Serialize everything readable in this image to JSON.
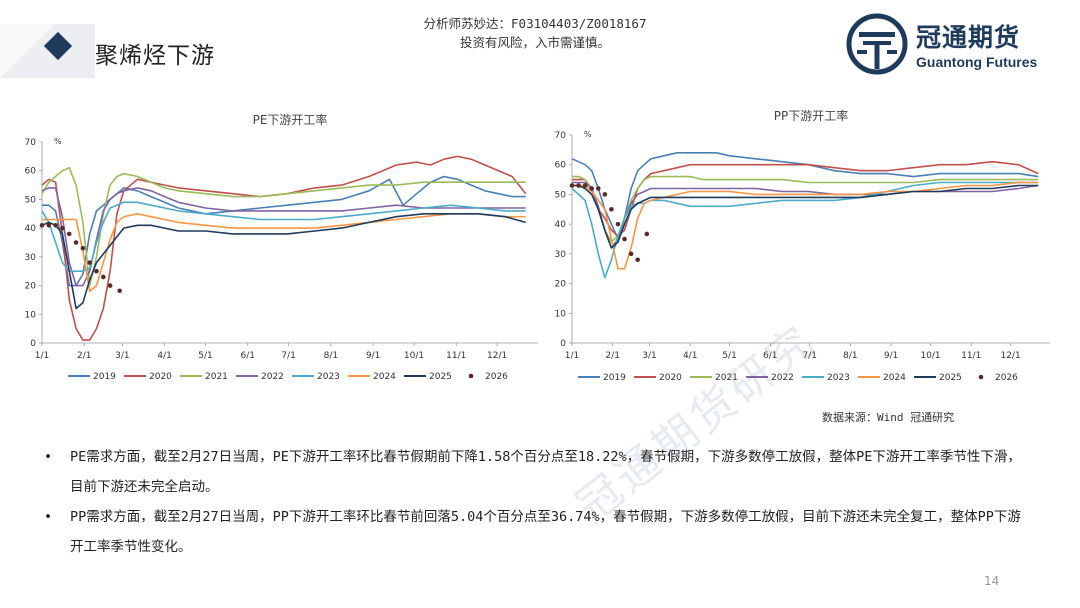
{
  "header": {
    "title": "聚烯烃下游",
    "analyst_line1": "分析师苏妙达：F03104403/Z0018167",
    "analyst_line2": "投资有风险，入市需谨慎。"
  },
  "logo": {
    "name_cn": "冠通期货",
    "name_en": "Guantong Futures",
    "brand_color": "#1f3b5c"
  },
  "source": "数据来源：Wind 冠通研究",
  "bullets": [
    "PE需求方面，截至2月27日当周，PE下游开工率环比春节假期前下降1.58个百分点至18.22%，春节假期，下游多数停工放假，整体PE下游开工率季节性下滑，目前下游还未完全启动。",
    "PP需求方面，截至2月27日当周，PP下游开工率环比春节前回落5.04个百分点至36.74%，春节假期，下游多数停工放假，目前下游还未完全复工，整体PP下游开工率季节性变化。"
  ],
  "bullet_symbol": "•",
  "watermark": "冠通期货研究",
  "page_number": "14",
  "chart_data": [
    {
      "type": "line",
      "title": "PE下游开工率",
      "ylabel": "%",
      "xlabel": "",
      "ylim": [
        0,
        70
      ],
      "yticks": [
        "0",
        "10",
        "20",
        "30",
        "40",
        "50",
        "60",
        "70"
      ],
      "xticks": [
        "1/1",
        "2/1",
        "3/1",
        "4/1",
        "5/1",
        "6/1",
        "7/1",
        "8/1",
        "9/1",
        "10/1",
        "11/1",
        "12/1"
      ],
      "legend_position": "bottom",
      "grid": false,
      "series": [
        {
          "name": "2019",
          "color": "#4a7fb5",
          "x": [
            1,
            6,
            11,
            16,
            21,
            26,
            31,
            36,
            41,
            46,
            51,
            56,
            61,
            71,
            81,
            91,
            101,
            121,
            141,
            161,
            181,
            201,
            221,
            241,
            256,
            266,
            276,
            286,
            296,
            306,
            316,
            326,
            336,
            346,
            356
          ],
          "values": [
            48,
            48,
            46,
            35,
            20,
            20,
            24,
            38,
            46,
            48,
            50,
            52,
            54,
            53,
            51,
            49,
            47,
            45,
            46,
            47,
            48,
            49,
            50,
            53,
            57,
            48,
            52,
            56,
            58,
            57,
            55,
            53,
            52,
            51,
            51
          ]
        },
        {
          "name": "2020",
          "color": "#c0504d",
          "x": [
            1,
            6,
            11,
            16,
            21,
            26,
            31,
            36,
            41,
            46,
            51,
            56,
            61,
            66,
            71,
            81,
            91,
            101,
            121,
            141,
            161,
            181,
            201,
            221,
            241,
            261,
            276,
            286,
            296,
            306,
            316,
            326,
            336,
            346,
            356
          ],
          "values": [
            55,
            57,
            56,
            38,
            15,
            5,
            1,
            1,
            5,
            12,
            25,
            45,
            53,
            55,
            57,
            56,
            55,
            54,
            53,
            52,
            51,
            52,
            54,
            55,
            58,
            62,
            63,
            62,
            64,
            65,
            64,
            62,
            60,
            58,
            52
          ]
        },
        {
          "name": "2021",
          "color": "#9bbb59",
          "x": [
            1,
            6,
            11,
            16,
            21,
            26,
            31,
            36,
            41,
            46,
            51,
            56,
            61,
            71,
            81,
            91,
            101,
            121,
            141,
            161,
            181,
            201,
            221,
            241,
            261,
            281,
            301,
            321,
            341,
            356
          ],
          "values": [
            52,
            56,
            58,
            60,
            61,
            55,
            42,
            20,
            30,
            45,
            55,
            58,
            59,
            58,
            56,
            54,
            53,
            52,
            51,
            51,
            52,
            53,
            54,
            55,
            55,
            56,
            56,
            56,
            56,
            56
          ]
        },
        {
          "name": "2022",
          "color": "#8064a2",
          "x": [
            1,
            6,
            11,
            16,
            21,
            26,
            31,
            36,
            41,
            46,
            51,
            56,
            61,
            71,
            81,
            91,
            101,
            121,
            141,
            161,
            181,
            201,
            221,
            241,
            261,
            281,
            301,
            321,
            341,
            356
          ],
          "values": [
            53,
            54,
            54,
            44,
            28,
            20,
            20,
            25,
            36,
            46,
            50,
            52,
            53,
            54,
            53,
            51,
            49,
            47,
            46,
            46,
            46,
            46,
            46,
            47,
            48,
            47,
            47,
            47,
            47,
            47
          ]
        },
        {
          "name": "2023",
          "color": "#4bacc6",
          "x": [
            1,
            6,
            11,
            16,
            21,
            26,
            31,
            36,
            41,
            46,
            51,
            56,
            61,
            71,
            81,
            91,
            101,
            121,
            141,
            161,
            181,
            201,
            221,
            241,
            261,
            281,
            301,
            321,
            341,
            356
          ],
          "values": [
            46,
            42,
            35,
            28,
            25,
            25,
            25,
            26,
            35,
            42,
            47,
            48,
            49,
            49,
            48,
            47,
            46,
            45,
            44,
            43,
            43,
            43,
            44,
            45,
            46,
            47,
            48,
            47,
            46,
            46
          ]
        },
        {
          "name": "2024",
          "color": "#f79646",
          "x": [
            1,
            6,
            11,
            16,
            21,
            26,
            31,
            36,
            41,
            46,
            51,
            56,
            61,
            71,
            81,
            91,
            101,
            121,
            141,
            161,
            181,
            201,
            221,
            241,
            261,
            281,
            301,
            321,
            341,
            356
          ],
          "values": [
            43,
            43,
            43,
            43,
            43,
            43,
            32,
            18,
            20,
            28,
            36,
            42,
            44,
            45,
            44,
            43,
            42,
            41,
            40,
            40,
            40,
            40,
            41,
            42,
            43,
            44,
            45,
            45,
            44,
            44
          ]
        },
        {
          "name": "2025",
          "color": "#1f3b5c",
          "x": [
            1,
            6,
            11,
            16,
            21,
            26,
            31,
            36,
            41,
            46,
            51,
            56,
            61,
            71,
            81,
            91,
            101,
            121,
            141,
            161,
            181,
            201,
            221,
            241,
            261,
            281,
            301,
            321,
            341,
            356
          ],
          "values": [
            41,
            42,
            41,
            38,
            25,
            12,
            14,
            22,
            28,
            31,
            34,
            37,
            40,
            41,
            41,
            40,
            39,
            39,
            38,
            38,
            38,
            39,
            40,
            42,
            44,
            45,
            45,
            45,
            44,
            42
          ]
        },
        {
          "name": "2026",
          "color": "#5a2a2a",
          "style": "dots",
          "x": [
            1,
            6,
            11,
            16,
            21,
            26,
            31,
            36,
            41,
            46,
            51,
            58
          ],
          "values": [
            41,
            41,
            41,
            40,
            38,
            35,
            33,
            28,
            25,
            23,
            20,
            18.2
          ]
        }
      ]
    },
    {
      "type": "line",
      "title": "PP下游开工率",
      "ylabel": "%",
      "xlabel": "",
      "ylim": [
        0,
        70
      ],
      "yticks": [
        "0",
        "10",
        "20",
        "30",
        "40",
        "50",
        "60",
        "70"
      ],
      "xticks": [
        "1/1",
        "2/1",
        "3/1",
        "4/1",
        "5/1",
        "6/1",
        "7/1",
        "8/1",
        "9/1",
        "10/1",
        "11/1",
        "12/1"
      ],
      "legend_position": "bottom",
      "grid": false,
      "series": [
        {
          "name": "2019",
          "color": "#4a7fb5",
          "x": [
            1,
            6,
            11,
            16,
            21,
            26,
            31,
            36,
            41,
            46,
            51,
            56,
            61,
            71,
            81,
            91,
            101,
            111,
            121,
            141,
            161,
            181,
            201,
            221,
            241,
            261,
            281,
            301,
            321,
            341,
            356
          ],
          "values": [
            62,
            61,
            60,
            58,
            52,
            45,
            40,
            35,
            42,
            52,
            58,
            60,
            62,
            63,
            64,
            64,
            64,
            64,
            63,
            62,
            61,
            60,
            58,
            57,
            57,
            56,
            57,
            57,
            57,
            57,
            56
          ]
        },
        {
          "name": "2020",
          "color": "#c0504d",
          "x": [
            1,
            6,
            11,
            16,
            21,
            26,
            31,
            36,
            41,
            46,
            51,
            56,
            61,
            71,
            81,
            91,
            101,
            111,
            121,
            141,
            161,
            181,
            201,
            221,
            241,
            261,
            281,
            301,
            321,
            341,
            356
          ],
          "values": [
            55,
            55,
            55,
            52,
            45,
            42,
            38,
            36,
            38,
            45,
            52,
            55,
            57,
            58,
            59,
            60,
            60,
            60,
            60,
            60,
            60,
            60,
            59,
            58,
            58,
            59,
            60,
            60,
            61,
            60,
            57
          ]
        },
        {
          "name": "2021",
          "color": "#9bbb59",
          "x": [
            1,
            6,
            11,
            16,
            21,
            26,
            31,
            36,
            41,
            46,
            51,
            56,
            61,
            71,
            81,
            91,
            101,
            121,
            141,
            161,
            181,
            201,
            221,
            241,
            261,
            281,
            301,
            321,
            341,
            356
          ],
          "values": [
            56,
            56,
            55,
            52,
            45,
            38,
            34,
            36,
            42,
            48,
            52,
            55,
            56,
            56,
            56,
            56,
            55,
            55,
            55,
            55,
            54,
            54,
            54,
            54,
            54,
            55,
            55,
            55,
            55,
            55
          ]
        },
        {
          "name": "2022",
          "color": "#8064a2",
          "x": [
            1,
            6,
            11,
            16,
            21,
            26,
            31,
            36,
            41,
            46,
            51,
            56,
            61,
            71,
            81,
            91,
            101,
            121,
            141,
            161,
            181,
            201,
            221,
            241,
            261,
            281,
            301,
            321,
            341,
            356
          ],
          "values": [
            54,
            54,
            54,
            52,
            46,
            38,
            32,
            35,
            42,
            47,
            50,
            51,
            52,
            52,
            52,
            52,
            52,
            52,
            52,
            51,
            51,
            50,
            50,
            50,
            51,
            51,
            51,
            51,
            52,
            53
          ]
        },
        {
          "name": "2023",
          "color": "#4bacc6",
          "x": [
            1,
            6,
            11,
            16,
            21,
            26,
            31,
            36,
            41,
            46,
            51,
            56,
            61,
            71,
            81,
            91,
            101,
            121,
            141,
            161,
            181,
            201,
            221,
            241,
            261,
            281,
            301,
            321,
            341,
            356
          ],
          "values": [
            52,
            50,
            48,
            40,
            30,
            22,
            28,
            36,
            42,
            46,
            47,
            47,
            48,
            48,
            47,
            46,
            46,
            46,
            47,
            48,
            48,
            48,
            49,
            51,
            53,
            54,
            54,
            54,
            54,
            54
          ]
        },
        {
          "name": "2024",
          "color": "#f79646",
          "x": [
            1,
            6,
            11,
            16,
            21,
            26,
            31,
            36,
            41,
            46,
            51,
            56,
            61,
            71,
            81,
            91,
            101,
            121,
            141,
            161,
            181,
            201,
            221,
            241,
            261,
            281,
            301,
            321,
            341,
            356
          ],
          "values": [
            53,
            53,
            53,
            51,
            48,
            45,
            35,
            25,
            25,
            32,
            42,
            47,
            48,
            49,
            50,
            51,
            51,
            51,
            50,
            50,
            50,
            50,
            50,
            51,
            51,
            52,
            53,
            53,
            54,
            54
          ]
        },
        {
          "name": "2025",
          "color": "#1f3b5c",
          "x": [
            1,
            6,
            11,
            16,
            21,
            26,
            31,
            36,
            41,
            46,
            51,
            56,
            61,
            71,
            81,
            91,
            101,
            121,
            141,
            161,
            181,
            201,
            221,
            241,
            261,
            281,
            301,
            321,
            341,
            356
          ],
          "values": [
            53,
            53,
            52,
            50,
            45,
            38,
            32,
            34,
            40,
            45,
            47,
            48,
            49,
            49,
            49,
            49,
            49,
            49,
            49,
            49,
            49,
            49,
            49,
            50,
            51,
            51,
            52,
            52,
            53,
            53
          ]
        },
        {
          "name": "2026",
          "color": "#5a2a2a",
          "style": "dots",
          "x": [
            1,
            6,
            11,
            16,
            21,
            26,
            31,
            36,
            41,
            46,
            51,
            58
          ],
          "values": [
            53,
            53,
            53,
            52,
            52,
            50,
            45,
            40,
            35,
            30,
            28,
            36.7
          ]
        }
      ]
    }
  ]
}
